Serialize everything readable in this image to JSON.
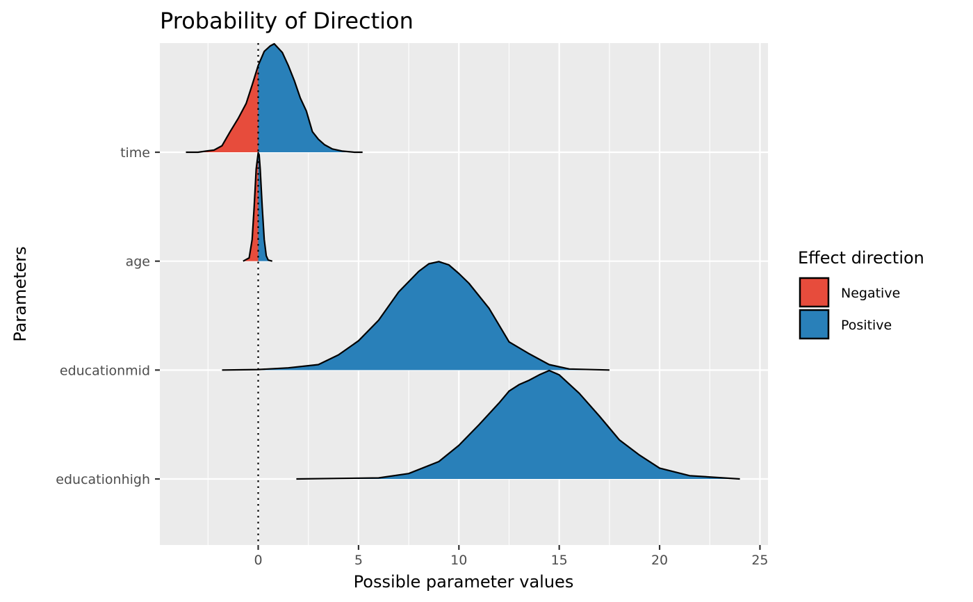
{
  "chart_data": {
    "type": "area",
    "title": "Probability of Direction",
    "xlabel": "Possible parameter values",
    "ylabel": "Parameters",
    "xlim": [
      -4.9,
      25.4
    ],
    "x_ticks": [
      0,
      5,
      10,
      15,
      20,
      25
    ],
    "x_tick_labels": [
      "0",
      "5",
      "10",
      "15",
      "20",
      "25"
    ],
    "reference_line": {
      "x": 0,
      "style": "dotted"
    },
    "grid": true,
    "legend": {
      "title": "Effect direction",
      "position": "right",
      "items": [
        {
          "label": "Negative",
          "color": "#E74C3C"
        },
        {
          "label": "Positive",
          "color": "#2980B9"
        }
      ]
    },
    "categories": [
      "time",
      "age",
      "educationmid",
      "educationhigh"
    ],
    "series": [
      {
        "name": "time",
        "x": [
          -3.6,
          -3.0,
          -2.6,
          -2.2,
          -1.8,
          -1.4,
          -1.0,
          -0.6,
          -0.3,
          0.0,
          0.3,
          0.6,
          0.8,
          1.0,
          1.2,
          1.5,
          1.8,
          2.1,
          2.4,
          2.7,
          3.0,
          3.3,
          3.7,
          4.2,
          4.8,
          5.2
        ],
        "density": [
          0.0,
          0.0,
          0.01,
          0.02,
          0.06,
          0.19,
          0.31,
          0.45,
          0.62,
          0.8,
          0.93,
          0.98,
          1.0,
          0.96,
          0.92,
          0.8,
          0.66,
          0.5,
          0.38,
          0.19,
          0.12,
          0.07,
          0.03,
          0.01,
          0.0,
          0.0
        ]
      },
      {
        "name": "age",
        "x": [
          -0.75,
          -0.45,
          -0.3,
          -0.2,
          -0.1,
          0.0,
          0.05,
          0.1,
          0.2,
          0.3,
          0.4,
          0.5,
          0.7
        ],
        "density": [
          0.0,
          0.03,
          0.2,
          0.5,
          0.85,
          1.0,
          0.98,
          0.85,
          0.5,
          0.2,
          0.05,
          0.01,
          0.0
        ]
      },
      {
        "name": "educationmid",
        "x": [
          -1.8,
          0.0,
          1.5,
          3.0,
          4.0,
          5.0,
          6.0,
          7.0,
          8.0,
          8.5,
          9.0,
          9.5,
          10.0,
          10.5,
          11.5,
          12.5,
          13.5,
          14.5,
          15.5,
          17.5
        ],
        "density": [
          0.0,
          0.005,
          0.02,
          0.05,
          0.14,
          0.27,
          0.46,
          0.72,
          0.91,
          0.98,
          1.0,
          0.97,
          0.89,
          0.8,
          0.57,
          0.26,
          0.15,
          0.05,
          0.01,
          0.0
        ]
      },
      {
        "name": "educationhigh",
        "x": [
          1.9,
          4.0,
          6.0,
          7.5,
          9.0,
          10.0,
          11.0,
          12.0,
          12.5,
          13.0,
          13.5,
          14.0,
          14.5,
          15.0,
          16.0,
          17.0,
          18.0,
          19.0,
          20.0,
          21.5,
          24.0
        ],
        "density": [
          0.0,
          0.005,
          0.01,
          0.05,
          0.16,
          0.31,
          0.5,
          0.7,
          0.81,
          0.87,
          0.91,
          0.96,
          1.0,
          0.96,
          0.79,
          0.58,
          0.36,
          0.22,
          0.1,
          0.03,
          0.0
        ]
      }
    ]
  }
}
